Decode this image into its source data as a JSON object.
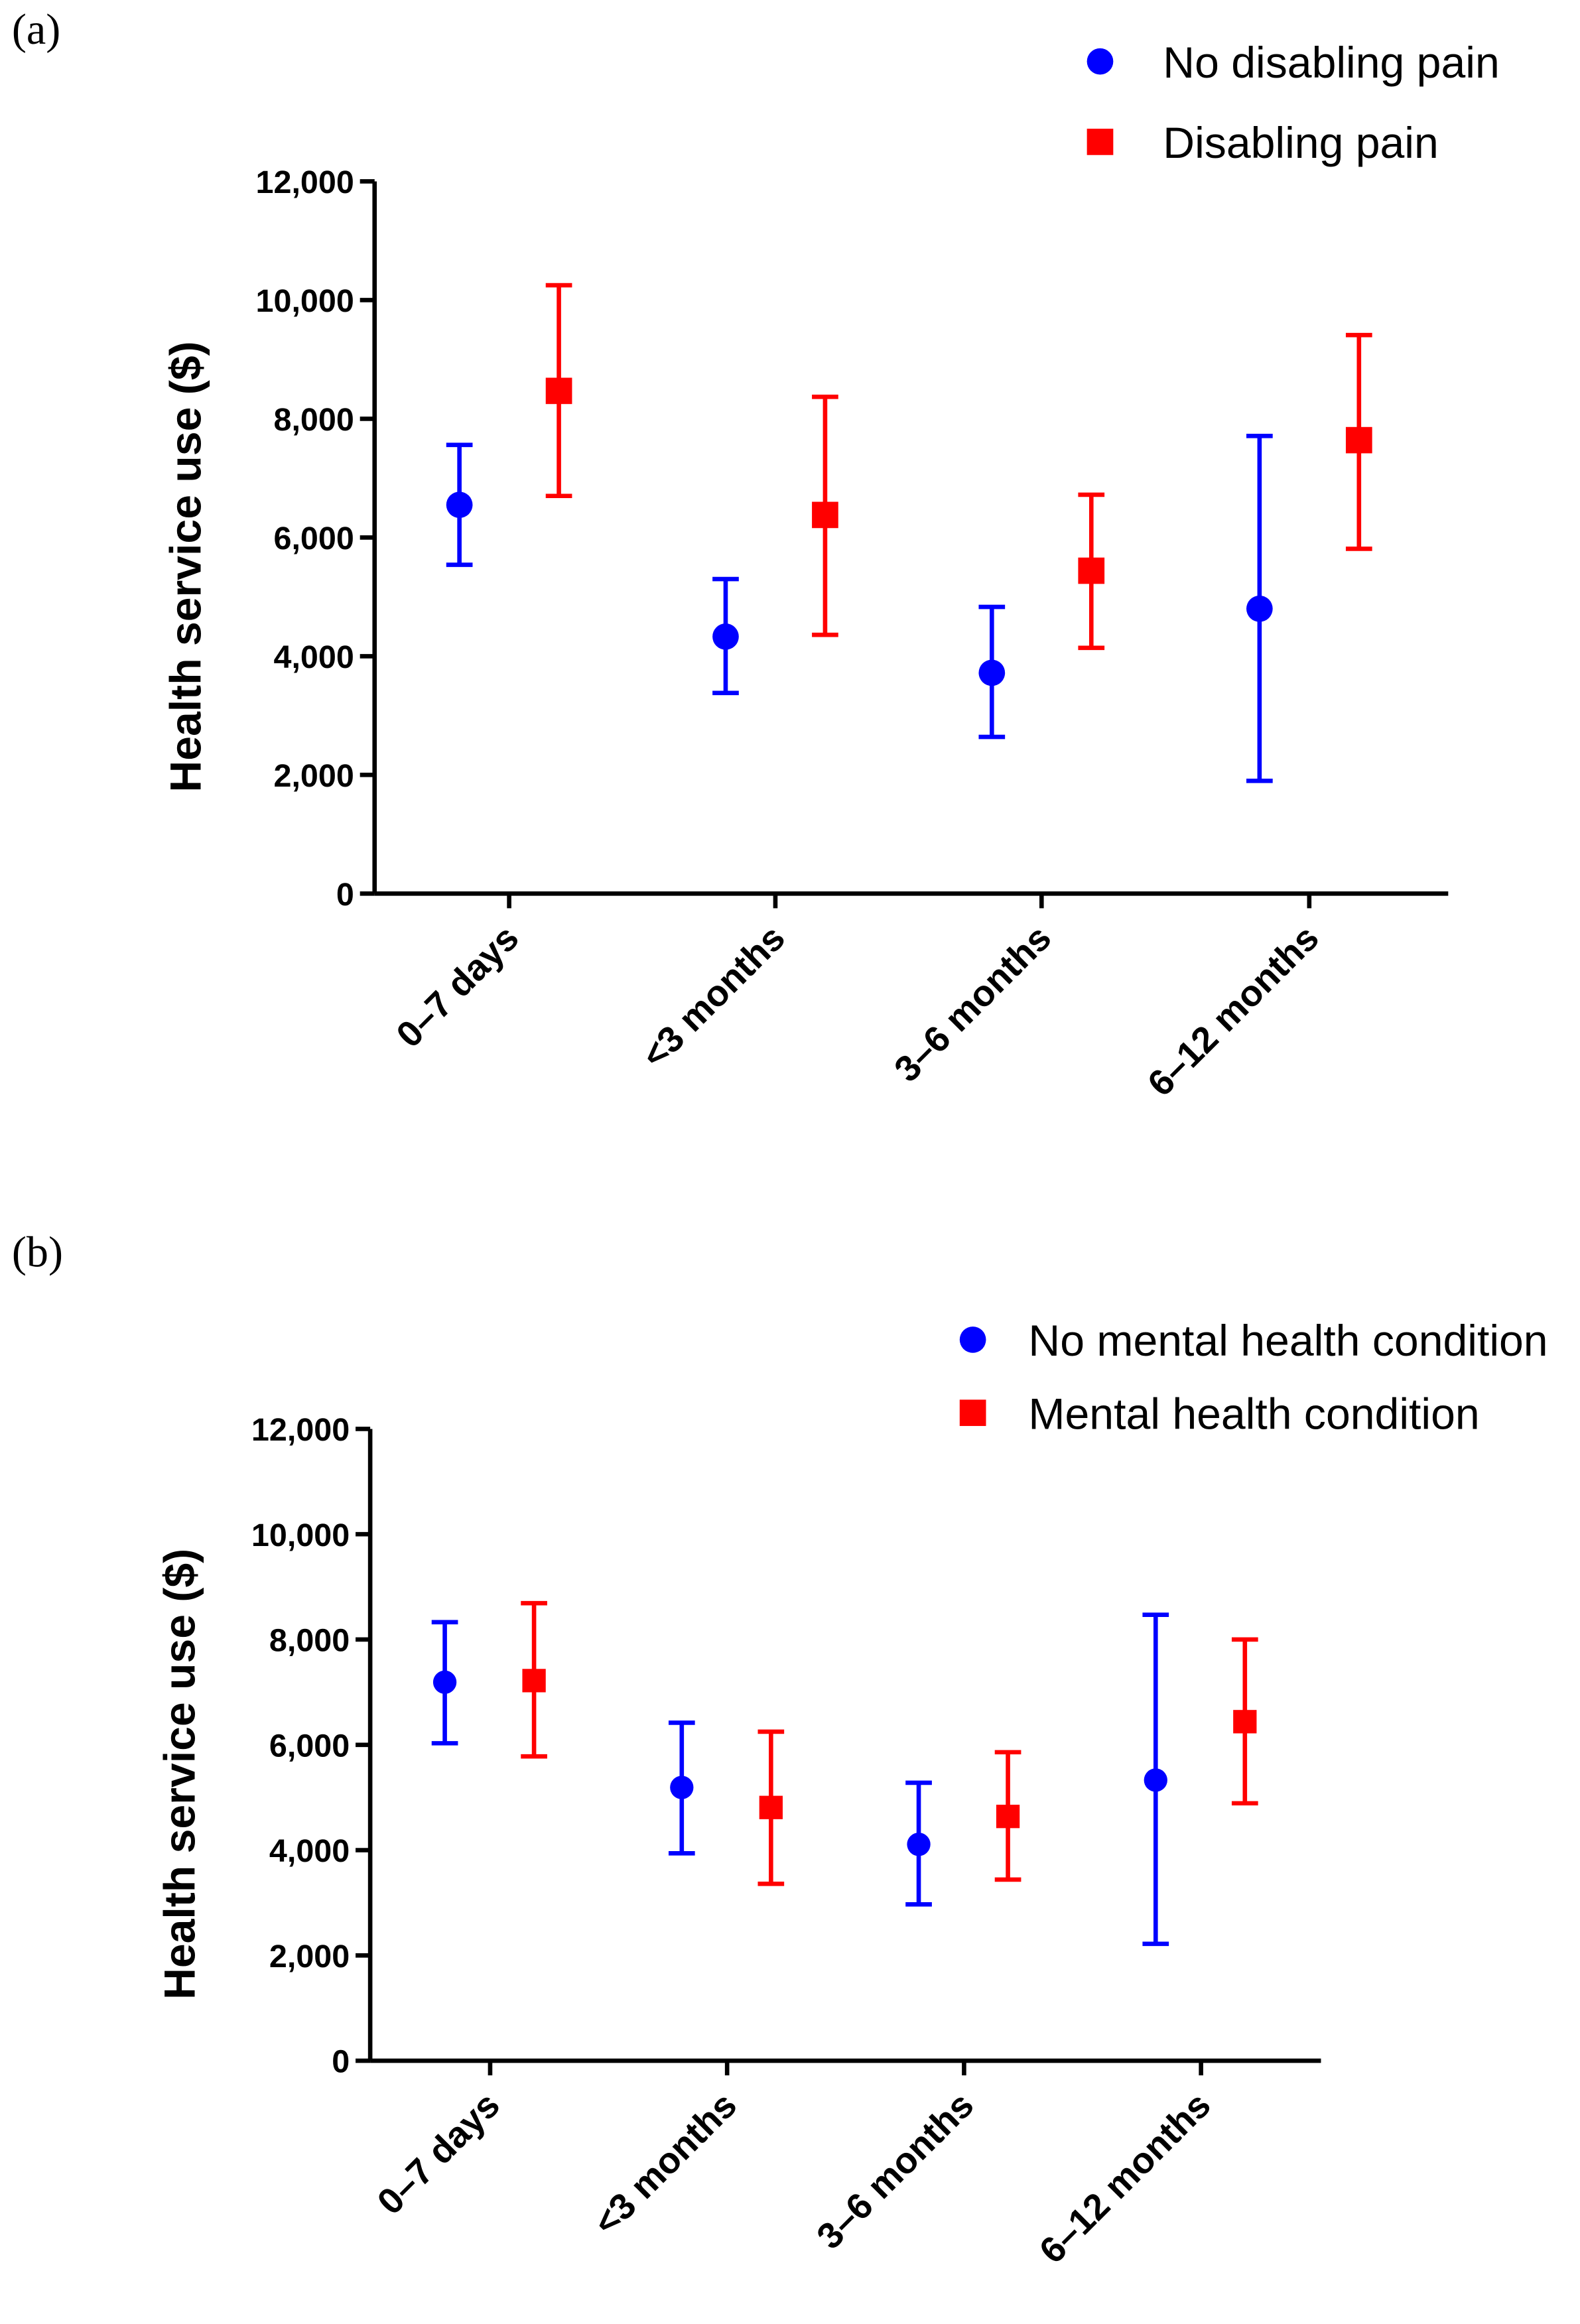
{
  "chart_data": [
    {
      "type": "scatter",
      "panel_label": "(a)",
      "ylabel": "Health service use ($)",
      "xlabel": "",
      "ylim": [
        0,
        12000
      ],
      "yticks": [
        "0",
        "2,000",
        "4,000",
        "6,000",
        "8,000",
        "10,000",
        "12,000"
      ],
      "ytick_values": [
        0,
        2000,
        4000,
        6000,
        8000,
        10000,
        12000
      ],
      "categories": [
        "0–7 days",
        "<3 months",
        "3–6 months",
        "6–12 months"
      ],
      "legend_position": "top-right",
      "series": [
        {
          "name": "No disabling pain",
          "color": "#0000ff",
          "marker": "circle",
          "values": [
            6550,
            4330,
            3720,
            4800
          ],
          "upper": [
            7560,
            5300,
            4830,
            7710
          ],
          "lower": [
            5540,
            3380,
            2640,
            1900
          ]
        },
        {
          "name": "Disabling pain",
          "color": "#ff0000",
          "marker": "square",
          "values": [
            8470,
            6380,
            5440,
            7640
          ],
          "upper": [
            10250,
            8370,
            6720,
            9410
          ],
          "lower": [
            6700,
            4360,
            4140,
            5810
          ]
        }
      ]
    },
    {
      "type": "scatter",
      "panel_label": "(b)",
      "ylabel": "Health service use ($)",
      "xlabel": "",
      "ylim": [
        0,
        12000
      ],
      "yticks": [
        "0",
        "2,000",
        "4,000",
        "6,000",
        "8,000",
        "10,000",
        "12,000"
      ],
      "ytick_values": [
        0,
        2000,
        4000,
        6000,
        8000,
        10000,
        12000
      ],
      "categories": [
        "0–7 days",
        "<3 months",
        "3–6 months",
        "6–12 months"
      ],
      "legend_position": "top-right",
      "series": [
        {
          "name": "No mental health condition",
          "color": "#0000ff",
          "marker": "circle",
          "values": [
            7190,
            5190,
            4110,
            5330
          ],
          "upper": [
            8330,
            6420,
            5280,
            8470
          ],
          "lower": [
            6030,
            3940,
            2970,
            2220
          ]
        },
        {
          "name": "Mental health condition",
          "color": "#ff0000",
          "marker": "square",
          "values": [
            7220,
            4810,
            4640,
            6440
          ],
          "upper": [
            8690,
            6250,
            5860,
            8000
          ],
          "lower": [
            5780,
            3360,
            3440,
            4890
          ]
        }
      ]
    }
  ]
}
